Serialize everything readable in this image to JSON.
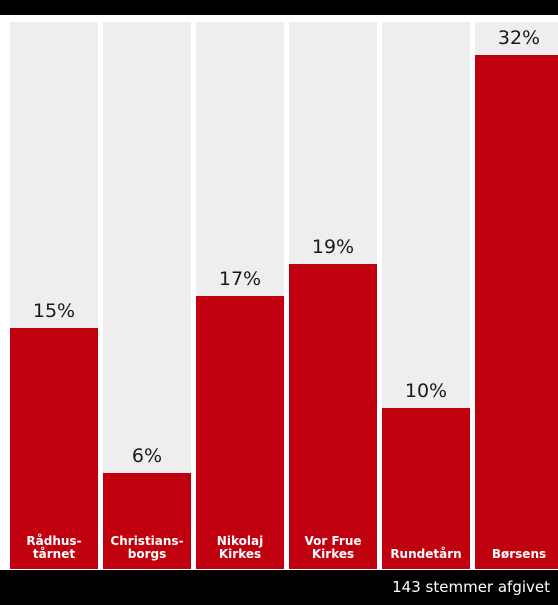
{
  "chart_data": {
    "type": "bar",
    "categories": [
      "Rådhus-\ntårnet",
      "Christians-\nborgs",
      "Nikolaj\nKirkes",
      "Vor Frue\nKirkes",
      "Rundetårn",
      "Børsens"
    ],
    "values": [
      15,
      6,
      17,
      19,
      10,
      32
    ],
    "value_labels": [
      "15%",
      "6%",
      "17%",
      "19%",
      "10%",
      "32%"
    ],
    "unit": "%",
    "ylim": [
      0,
      32
    ],
    "grid": false,
    "legend": "none",
    "colors": {
      "bar": "#c1000f",
      "track": "#efeeef",
      "frame": "#000000"
    }
  },
  "footer": {
    "text": "143 stemmer afgivet"
  }
}
